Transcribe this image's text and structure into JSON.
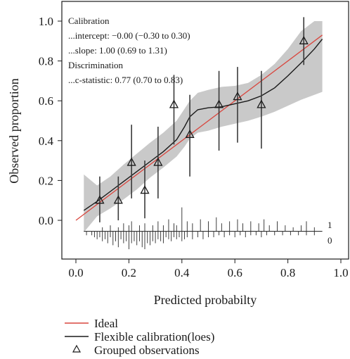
{
  "chart_data": {
    "type": "line",
    "xlabel": "Predicted probabilty",
    "ylabel": "Observed proportion",
    "xlim": [
      -0.05,
      1.0
    ],
    "ylim": [
      -0.13,
      1.02
    ],
    "x_ticks": [
      "0.0",
      "0.2",
      "0.4",
      "0.6",
      "0.8",
      "1.0"
    ],
    "x_tick_values": [
      0.0,
      0.2,
      0.4,
      0.6,
      0.8,
      1.0
    ],
    "y_ticks": [
      "0.0",
      "0.2",
      "0.4",
      "0.6",
      "0.8",
      "1.0"
    ],
    "y_tick_values": [
      0.0,
      0.2,
      0.4,
      0.6,
      0.8,
      1.0
    ],
    "annotation_lines": [
      "Calibration",
      "...intercept: −0.00 (−0.30 to 0.30)",
      "...slope: 1.00 (0.69 to 1.31)",
      "Discrimination",
      "...c-statistic: 0.77 (0.70 to 0.83)"
    ],
    "series": [
      {
        "name": "Ideal",
        "color": "#d9463e",
        "x": [
          0.0,
          0.93
        ],
        "y": [
          0.0,
          0.93
        ]
      },
      {
        "name": "Flexible calibration(loes)",
        "color": "#1a1a1a",
        "x": [
          0.03,
          0.08,
          0.13,
          0.18,
          0.23,
          0.28,
          0.33,
          0.38,
          0.41,
          0.43,
          0.46,
          0.5,
          0.55,
          0.6,
          0.65,
          0.7,
          0.75,
          0.8,
          0.85,
          0.9,
          0.93
        ],
        "y": [
          0.05,
          0.095,
          0.145,
          0.195,
          0.245,
          0.295,
          0.345,
          0.405,
          0.47,
          0.52,
          0.555,
          0.565,
          0.57,
          0.585,
          0.6,
          0.625,
          0.665,
          0.725,
          0.79,
          0.86,
          0.91
        ],
        "ci_lower": [
          -0.06,
          0.02,
          0.06,
          0.105,
          0.155,
          0.215,
          0.265,
          0.32,
          0.37,
          0.41,
          0.44,
          0.45,
          0.47,
          0.485,
          0.5,
          0.52,
          0.545,
          0.575,
          0.605,
          0.63,
          0.645
        ],
        "ci_upper": [
          0.23,
          0.175,
          0.22,
          0.28,
          0.335,
          0.39,
          0.44,
          0.5,
          0.56,
          0.6,
          0.64,
          0.655,
          0.67,
          0.675,
          0.69,
          0.73,
          0.785,
          0.86,
          0.95,
          1.0,
          1.0
        ]
      },
      {
        "name": "Grouped observations",
        "type": "scatter",
        "x": [
          0.09,
          0.16,
          0.21,
          0.26,
          0.31,
          0.37,
          0.43,
          0.54,
          0.61,
          0.7,
          0.86
        ],
        "y": [
          0.1,
          0.1,
          0.29,
          0.15,
          0.29,
          0.58,
          0.43,
          0.58,
          0.62,
          0.58,
          0.9
        ],
        "err_lower": [
          -0.01,
          0.0,
          0.11,
          0.01,
          0.11,
          0.38,
          0.22,
          0.35,
          0.39,
          0.36,
          0.78
        ],
        "err_upper": [
          0.22,
          0.22,
          0.48,
          0.3,
          0.47,
          0.73,
          0.63,
          0.75,
          0.77,
          0.75,
          1.02
        ]
      }
    ],
    "rug": {
      "labels": [
        "1",
        "0"
      ],
      "baseline": -0.055,
      "events_x": [
        0.1,
        0.13,
        0.16,
        0.18,
        0.2,
        0.21,
        0.24,
        0.26,
        0.29,
        0.31,
        0.33,
        0.35,
        0.37,
        0.38,
        0.4,
        0.42,
        0.44,
        0.47,
        0.5,
        0.53,
        0.55,
        0.58,
        0.61,
        0.63,
        0.66,
        0.69,
        0.71,
        0.73,
        0.76,
        0.79,
        0.82,
        0.85,
        0.87,
        0.9
      ],
      "events_h": [
        0.02,
        0.03,
        0.02,
        0.04,
        0.03,
        0.05,
        0.03,
        0.04,
        0.03,
        0.05,
        0.03,
        0.06,
        0.04,
        0.03,
        0.12,
        0.05,
        0.04,
        0.06,
        0.05,
        0.07,
        0.04,
        0.05,
        0.06,
        0.04,
        0.05,
        0.04,
        0.06,
        0.03,
        0.05,
        0.03,
        0.02,
        0.03,
        0.05,
        0.02
      ],
      "nonevents_x": [
        0.04,
        0.06,
        0.07,
        0.08,
        0.09,
        0.1,
        0.11,
        0.12,
        0.13,
        0.14,
        0.15,
        0.16,
        0.17,
        0.18,
        0.19,
        0.2,
        0.21,
        0.22,
        0.23,
        0.24,
        0.25,
        0.26,
        0.27,
        0.28,
        0.29,
        0.3,
        0.31,
        0.32,
        0.33,
        0.34,
        0.35,
        0.36,
        0.37,
        0.38,
        0.39,
        0.4,
        0.41,
        0.42,
        0.44,
        0.46,
        0.48,
        0.5,
        0.52,
        0.54,
        0.56,
        0.58,
        0.6,
        0.62,
        0.64,
        0.66,
        0.68,
        0.7,
        0.72,
        0.75,
        0.78,
        0.81,
        0.84,
        0.87,
        0.9
      ],
      "nonevents_h": [
        0.02,
        0.02,
        0.03,
        0.04,
        0.03,
        0.05,
        0.04,
        0.06,
        0.03,
        0.07,
        0.05,
        0.08,
        0.04,
        0.06,
        0.05,
        0.09,
        0.06,
        0.05,
        0.07,
        0.05,
        0.08,
        0.09,
        0.06,
        0.07,
        0.05,
        0.06,
        0.04,
        0.05,
        0.06,
        0.03,
        0.04,
        0.05,
        0.03,
        0.04,
        0.03,
        0.05,
        0.04,
        0.03,
        0.04,
        0.03,
        0.04,
        0.03,
        0.03,
        0.02,
        0.03,
        0.02,
        0.03,
        0.02,
        0.03,
        0.02,
        0.02,
        0.03,
        0.02,
        0.02,
        0.02,
        0.02,
        0.02,
        0.02,
        0.02
      ]
    }
  }
}
